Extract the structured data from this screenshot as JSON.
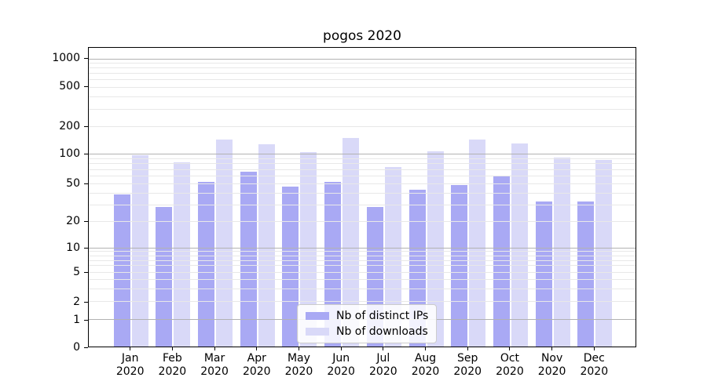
{
  "title": "pogos 2020",
  "chart_data": {
    "type": "bar",
    "title": "pogos 2020",
    "y_scale": "symlog",
    "categories": [
      "Jan",
      "Feb",
      "Mar",
      "Apr",
      "May",
      "Jun",
      "Jul",
      "Aug",
      "Sep",
      "Oct",
      "Nov",
      "Dec"
    ],
    "x_year_label": "2020",
    "series": [
      {
        "name": "Nb of distinct IPs",
        "values": [
          38,
          28,
          52,
          66,
          46,
          52,
          28,
          43,
          48,
          59,
          32,
          32
        ]
      },
      {
        "name": "Nb of downloads",
        "values": [
          97,
          82,
          143,
          127,
          104,
          149,
          74,
          106,
          143,
          130,
          92,
          87
        ]
      }
    ],
    "y_ticks": [
      0,
      1,
      2,
      5,
      10,
      20,
      50,
      100,
      200,
      500,
      1000
    ],
    "ylim": [
      0,
      1300
    ],
    "grid": "on",
    "legend_position": "lower-center"
  },
  "colors": {
    "distinct_ips": "#a9a9f4",
    "downloads": "#d9d9f8",
    "grid_major": "#b2b2b2",
    "grid_minor": "#e8e8e8",
    "axis": "#000000",
    "background": "#ffffff"
  }
}
